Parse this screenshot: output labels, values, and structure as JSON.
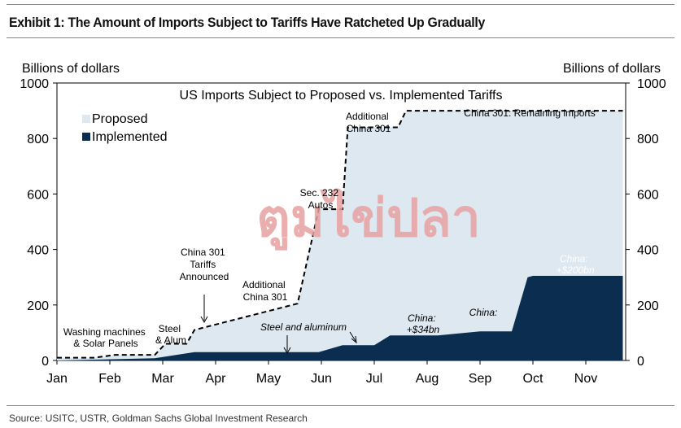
{
  "header": {
    "title": "Exhibit 1: The Amount of Imports Subject to Tariffs Have Ratcheted Up Gradually"
  },
  "footer": {
    "source": "Source: USITC, USTR, Goldman Sachs Global Investment Research"
  },
  "watermark": {
    "text": "ตูมไข่ปลา",
    "color": "#e8a0a0"
  },
  "colors": {
    "proposed": "#dde8f1",
    "implemented": "#0b2d50"
  },
  "chart_data": {
    "type": "area",
    "title": "US Imports Subject to Proposed vs. Implemented Tariffs",
    "ylabel_left": "Billions of dollars",
    "ylabel_right": "Billions of dollars",
    "ylim": [
      0,
      1000
    ],
    "yticks": [
      0,
      200,
      400,
      600,
      800,
      1000
    ],
    "x_months": [
      "Jan",
      "Feb",
      "Mar",
      "Apr",
      "May",
      "Jun",
      "Jul",
      "Aug",
      "Sep",
      "Oct",
      "Nov"
    ],
    "x_range_months": [
      0,
      10.7
    ],
    "series": [
      {
        "name": "Proposed",
        "style": "dashed-line-with-light-fill",
        "x": [
          0,
          0.7,
          1.1,
          1.85,
          2.05,
          2.45,
          2.6,
          4.55,
          4.95,
          5.4,
          5.5,
          6.45,
          6.6,
          10.7
        ],
        "y": [
          10,
          10,
          20,
          20,
          60,
          60,
          110,
          205,
          545,
          545,
          840,
          840,
          900,
          900
        ]
      },
      {
        "name": "Implemented",
        "style": "solid-fill",
        "x": [
          0,
          0.7,
          1.85,
          2.6,
          4.95,
          5.4,
          6.0,
          6.3,
          7.2,
          8.0,
          8.6,
          8.9,
          9.0,
          10.7
        ],
        "y": [
          0,
          3,
          8,
          30,
          30,
          55,
          55,
          90,
          90,
          105,
          105,
          300,
          305,
          305
        ]
      }
    ],
    "legend": [
      {
        "label": "Proposed"
      },
      {
        "label": "Implemented"
      }
    ],
    "annotations": [
      {
        "lines": [
          "Washing machines",
          "& Solar Panels"
        ]
      },
      {
        "lines": [
          "Steel",
          "& Alum"
        ]
      },
      {
        "lines": [
          "China 301",
          "Tariffs",
          "Announced"
        ]
      },
      {
        "lines": [
          "Additional",
          "China 301"
        ]
      },
      {
        "lines": [
          "Steel and aluminum"
        ]
      },
      {
        "lines": [
          "Sec. 232",
          "Autos"
        ]
      },
      {
        "lines": [
          "Additional",
          "China 301"
        ]
      },
      {
        "lines": [
          "China 301: Remaining imports"
        ]
      },
      {
        "lines": [
          "China:",
          "+$34bn"
        ]
      },
      {
        "lines": [
          "China:"
        ]
      },
      {
        "lines": [
          "China:",
          "+$200bn"
        ]
      }
    ]
  }
}
